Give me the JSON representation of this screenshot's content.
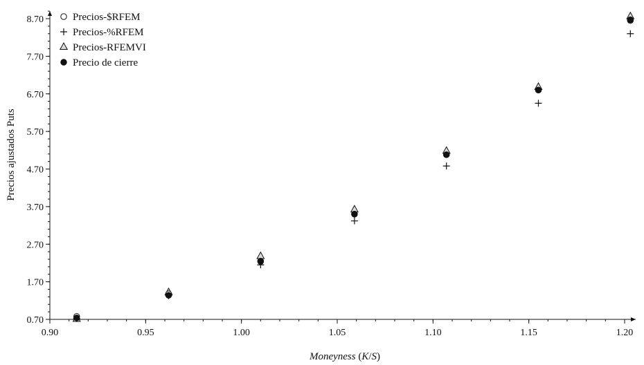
{
  "chart_data": {
    "type": "scatter",
    "xlabel": "Moneyness (K/S)",
    "ylabel": "Precios ajustados Puts",
    "xlim": [
      0.9,
      1.21
    ],
    "ylim": [
      0.7,
      9.0
    ],
    "x_ticks": [
      "0.90",
      "0.95",
      "1.00",
      "1.05",
      "1.10",
      "1.15",
      "1.20"
    ],
    "y_ticks": [
      "0.70",
      "1.70",
      "2.70",
      "3.70",
      "4.70",
      "5.70",
      "6.70",
      "7.70",
      "8.70"
    ],
    "legend_position": "top-left",
    "grid": false,
    "series": [
      {
        "name": "Precios-$RFEM",
        "marker": "circle-open",
        "x": [
          0.914,
          0.962,
          1.01,
          1.059,
          1.107,
          1.155,
          1.203
        ],
        "y": [
          0.78,
          1.38,
          2.25,
          3.5,
          5.08,
          6.8,
          8.65
        ]
      },
      {
        "name": "Precios-%RFEM",
        "marker": "plus",
        "x": [
          0.914,
          0.962,
          1.01,
          1.059,
          1.107,
          1.155,
          1.203
        ],
        "y": [
          0.72,
          1.33,
          2.15,
          3.32,
          4.78,
          6.45,
          8.3
        ]
      },
      {
        "name": "Precios-RFEMVI",
        "marker": "triangle-open",
        "x": [
          0.914,
          0.962,
          1.01,
          1.059,
          1.107,
          1.155,
          1.203
        ],
        "y": [
          0.71,
          1.42,
          2.38,
          3.62,
          5.18,
          6.88,
          8.76
        ]
      },
      {
        "name": "Precio de cierre",
        "marker": "circle-filled",
        "x": [
          0.914,
          0.962,
          1.01,
          1.059,
          1.107,
          1.155,
          1.203
        ],
        "y": [
          0.74,
          1.34,
          2.24,
          3.5,
          5.08,
          6.8,
          8.67
        ]
      }
    ]
  }
}
